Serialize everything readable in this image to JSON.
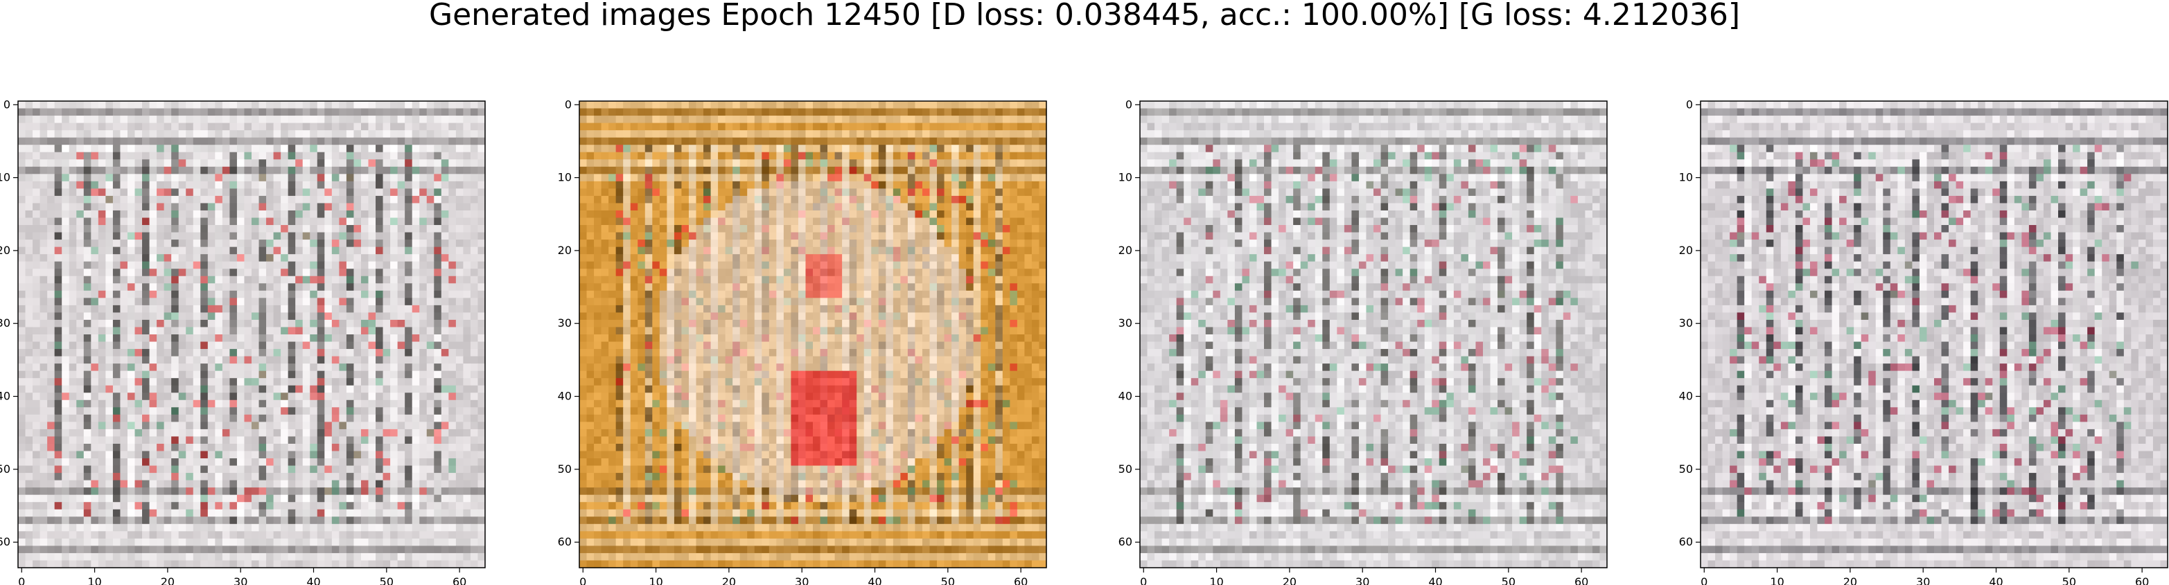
{
  "title": "Generated images Epoch 12450 [D loss: 0.038445, acc.: 100.00%] [G loss: 4.212036]",
  "chart_data": [
    {
      "type": "heatmap",
      "xlim": [
        0,
        63
      ],
      "ylim": [
        63,
        0
      ],
      "xticks": [
        0,
        10,
        20,
        30,
        40,
        50,
        60
      ],
      "yticks": [
        0,
        10,
        20,
        30,
        40,
        50,
        60
      ],
      "palette": "grey-pink",
      "colors": {
        "base": "#d9d4d6",
        "dark": "#3c3a38",
        "accent": "#e23b3b"
      }
    },
    {
      "type": "heatmap",
      "xlim": [
        0,
        63
      ],
      "ylim": [
        63,
        0
      ],
      "xticks": [
        0,
        10,
        20,
        30,
        40,
        50,
        60
      ],
      "yticks": [
        0,
        10,
        20,
        30,
        40,
        50,
        60
      ],
      "palette": "orange",
      "colors": {
        "base": "#d99a3c",
        "dark": "#6b4a1a",
        "accent": "#ee2a2a"
      }
    },
    {
      "type": "heatmap",
      "xlim": [
        0,
        63
      ],
      "ylim": [
        63,
        0
      ],
      "xticks": [
        0,
        10,
        20,
        30,
        40,
        50,
        60
      ],
      "yticks": [
        0,
        10,
        20,
        30,
        40,
        50,
        60
      ],
      "palette": "grey-pink",
      "colors": {
        "base": "#d6d3d6",
        "dark": "#45433f",
        "accent": "#c85a6e"
      }
    },
    {
      "type": "heatmap",
      "xlim": [
        0,
        63
      ],
      "ylim": [
        63,
        0
      ],
      "xticks": [
        0,
        10,
        20,
        30,
        40,
        50,
        60
      ],
      "yticks": [
        0,
        10,
        20,
        30,
        40,
        50,
        60
      ],
      "palette": "grey-pink",
      "colors": {
        "base": "#d5d0d4",
        "dark": "#2a2a2e",
        "accent": "#b03050"
      }
    }
  ]
}
